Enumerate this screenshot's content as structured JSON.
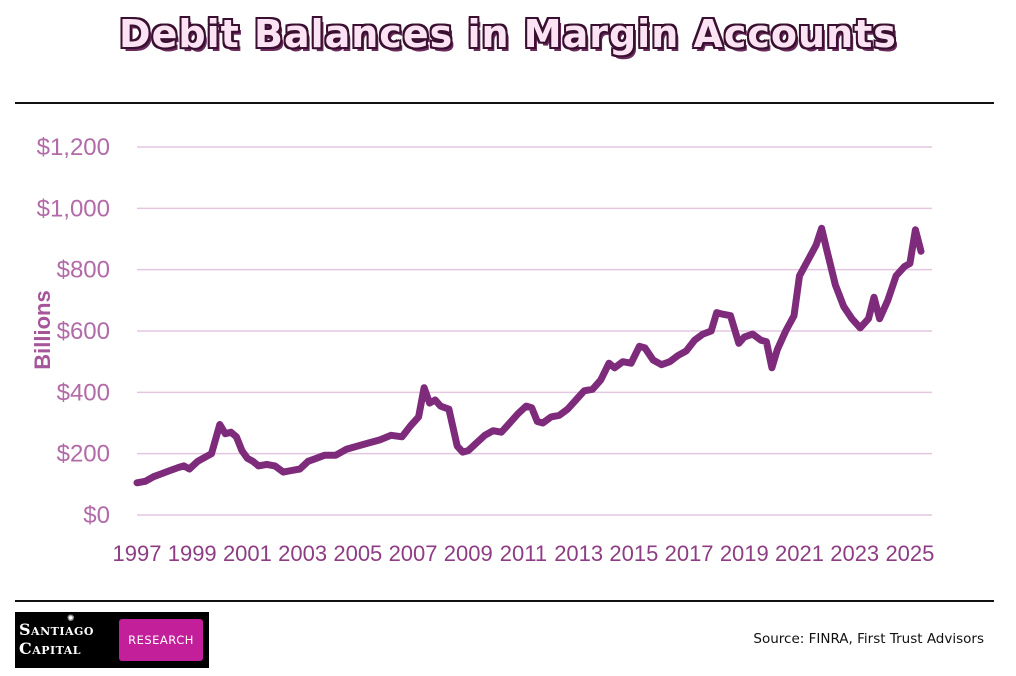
{
  "header": {
    "title": "Debit Balances in Margin Accounts"
  },
  "chart_data": {
    "type": "line",
    "title": "Debit Balances in Margin Accounts",
    "ylabel": "Billions",
    "xlabel": "",
    "ylim": [
      0,
      1200
    ],
    "xlim": [
      1997,
      2025.8
    ],
    "grid": true,
    "color": "#7e2b7c",
    "y_tick_values": [
      0,
      200,
      400,
      600,
      800,
      1000,
      1200
    ],
    "y_tick_labels": [
      "$0",
      "$200",
      "$400",
      "$600",
      "$800",
      "$1,000",
      "$1,200"
    ],
    "x_tick_values": [
      1997,
      1999,
      2001,
      2003,
      2005,
      2007,
      2009,
      2011,
      2013,
      2015,
      2017,
      2019,
      2021,
      2023,
      2025
    ],
    "x_tick_labels": [
      "1997",
      "1999",
      "2001",
      "2003",
      "2005",
      "2007",
      "2009",
      "2011",
      "2013",
      "2015",
      "2017",
      "2019",
      "2021",
      "2023",
      "2025"
    ],
    "series": [
      {
        "name": "Debit Balances",
        "x": [
          1997.0,
          1997.3,
          1997.6,
          1997.9,
          1998.2,
          1998.5,
          1998.7,
          1998.9,
          1999.2,
          1999.5,
          1999.7,
          2000.0,
          2000.2,
          2000.4,
          2000.6,
          2000.8,
          2001.0,
          2001.2,
          2001.4,
          2001.7,
          2002.0,
          2002.3,
          2002.6,
          2002.9,
          2003.2,
          2003.5,
          2003.8,
          2004.2,
          2004.6,
          2005.0,
          2005.4,
          2005.8,
          2006.2,
          2006.6,
          2006.9,
          2007.2,
          2007.4,
          2007.6,
          2007.8,
          2008.0,
          2008.3,
          2008.6,
          2008.8,
          2009.0,
          2009.3,
          2009.6,
          2009.9,
          2010.2,
          2010.5,
          2010.8,
          2011.1,
          2011.3,
          2011.5,
          2011.7,
          2012.0,
          2012.3,
          2012.6,
          2012.9,
          2013.2,
          2013.5,
          2013.8,
          2014.1,
          2014.3,
          2014.6,
          2014.9,
          2015.2,
          2015.4,
          2015.7,
          2016.0,
          2016.3,
          2016.6,
          2016.9,
          2017.2,
          2017.5,
          2017.8,
          2018.0,
          2018.2,
          2018.5,
          2018.8,
          2019.0,
          2019.3,
          2019.6,
          2019.8,
          2020.0,
          2020.2,
          2020.5,
          2020.8,
          2021.0,
          2021.3,
          2021.6,
          2021.8,
          2022.0,
          2022.3,
          2022.6,
          2022.9,
          2023.2,
          2023.5,
          2023.7,
          2023.9,
          2024.2,
          2024.5,
          2024.8,
          2025.0,
          2025.2,
          2025.4
        ],
        "values": [
          105,
          110,
          125,
          135,
          145,
          155,
          160,
          150,
          175,
          190,
          200,
          295,
          265,
          270,
          255,
          210,
          185,
          175,
          160,
          165,
          160,
          140,
          145,
          150,
          175,
          185,
          195,
          195,
          215,
          225,
          235,
          245,
          260,
          255,
          290,
          320,
          415,
          365,
          375,
          355,
          345,
          225,
          205,
          210,
          235,
          260,
          275,
          270,
          300,
          330,
          355,
          350,
          305,
          300,
          320,
          325,
          345,
          375,
          405,
          410,
          440,
          495,
          480,
          500,
          495,
          550,
          545,
          505,
          490,
          500,
          520,
          535,
          570,
          590,
          600,
          660,
          655,
          650,
          560,
          580,
          590,
          570,
          565,
          480,
          540,
          600,
          650,
          780,
          830,
          880,
          935,
          860,
          750,
          680,
          640,
          610,
          640,
          710,
          640,
          700,
          780,
          810,
          820,
          930,
          860
        ]
      }
    ]
  },
  "footer": {
    "logo_line1": "Santiago",
    "logo_line2": "Capital",
    "logo_badge": "RESEARCH",
    "source": "Source: FINRA, First Trust Advisors"
  }
}
